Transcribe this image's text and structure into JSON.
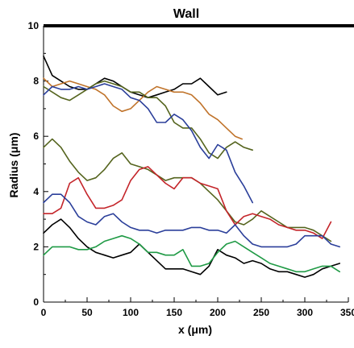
{
  "chart_data": {
    "type": "line",
    "title": "",
    "xlabel": "x (μm)",
    "ylabel": "Radius (μm)",
    "xlim": [
      0,
      350
    ],
    "ylim": [
      0,
      10
    ],
    "x_ticks": [
      "0",
      "50",
      "100",
      "150",
      "200",
      "250",
      "300",
      "350"
    ],
    "y_ticks": [
      "0",
      "2",
      "4",
      "6",
      "8",
      "10"
    ],
    "grid": false,
    "legend": "none",
    "annotations": [
      {
        "text": "Wall",
        "y": 10,
        "color": "#000000"
      }
    ],
    "series": [
      {
        "color": "#000000",
        "x": [
          0,
          10,
          20,
          30,
          40,
          50,
          60,
          70,
          80,
          90,
          100,
          110,
          120,
          130,
          140,
          150,
          160,
          170,
          180,
          190,
          200,
          210
        ],
        "y": [
          8.9,
          8.2,
          8.0,
          7.8,
          7.7,
          7.7,
          7.9,
          8.1,
          8.0,
          7.8,
          7.6,
          7.5,
          7.4,
          7.5,
          7.6,
          7.7,
          7.9,
          7.9,
          8.1,
          7.8,
          7.5,
          7.6
        ]
      },
      {
        "color": "#c0732a",
        "x": [
          0,
          10,
          20,
          30,
          40,
          50,
          60,
          70,
          80,
          90,
          100,
          110,
          120,
          130,
          140,
          150,
          160,
          170,
          180,
          190,
          200,
          210,
          220,
          228
        ],
        "y": [
          8.1,
          7.8,
          7.9,
          8.0,
          7.9,
          7.8,
          7.7,
          7.5,
          7.1,
          6.9,
          7.0,
          7.3,
          7.6,
          7.8,
          7.7,
          7.6,
          7.6,
          7.5,
          7.2,
          6.8,
          6.6,
          6.3,
          6.0,
          5.9
        ]
      },
      {
        "color": "#55641e",
        "x": [
          0,
          10,
          20,
          30,
          40,
          50,
          60,
          70,
          80,
          90,
          100,
          110,
          120,
          130,
          140,
          150,
          160,
          170,
          180,
          190,
          200,
          210,
          220,
          230,
          240
        ],
        "y": [
          7.8,
          7.6,
          7.4,
          7.3,
          7.5,
          7.7,
          7.9,
          8.0,
          7.9,
          7.8,
          7.6,
          7.6,
          7.4,
          7.4,
          7.1,
          6.5,
          6.3,
          6.3,
          5.9,
          5.4,
          5.2,
          5.6,
          5.8,
          5.6,
          5.5
        ]
      },
      {
        "color": "#2b3f9a",
        "x": [
          0,
          10,
          20,
          30,
          40,
          50,
          60,
          70,
          80,
          90,
          100,
          110,
          120,
          130,
          140,
          150,
          160,
          170,
          180,
          190,
          200,
          210,
          220,
          230,
          240
        ],
        "y": [
          7.5,
          7.8,
          7.7,
          7.7,
          7.8,
          7.7,
          7.8,
          7.9,
          7.8,
          7.7,
          7.4,
          7.3,
          7.0,
          6.5,
          6.5,
          6.8,
          6.6,
          6.2,
          5.6,
          5.2,
          5.7,
          5.5,
          4.7,
          4.2,
          3.6
        ]
      },
      {
        "color": "#55641e",
        "x": [
          0,
          10,
          20,
          30,
          40,
          50,
          60,
          70,
          80,
          90,
          100,
          110,
          120,
          130,
          140,
          150,
          160,
          170,
          180,
          190,
          200,
          210,
          220,
          230,
          240,
          250,
          260,
          270,
          280,
          290,
          300,
          310,
          320,
          330
        ],
        "y": [
          5.6,
          5.9,
          5.6,
          5.1,
          4.7,
          4.4,
          4.5,
          4.8,
          5.2,
          5.4,
          5.0,
          4.9,
          4.8,
          4.6,
          4.4,
          4.5,
          4.5,
          4.5,
          4.3,
          4.0,
          3.7,
          3.3,
          2.9,
          2.8,
          3.0,
          3.3,
          3.1,
          2.9,
          2.7,
          2.7,
          2.7,
          2.6,
          2.4,
          2.2
        ]
      },
      {
        "color": "#c4252a",
        "x": [
          0,
          10,
          20,
          30,
          40,
          50,
          60,
          70,
          80,
          90,
          100,
          110,
          120,
          130,
          140,
          150,
          160,
          170,
          180,
          190,
          200,
          210,
          220,
          230,
          240,
          250,
          260,
          270,
          280,
          290,
          300,
          310,
          320,
          330
        ],
        "y": [
          3.2,
          3.2,
          3.4,
          4.3,
          4.5,
          3.9,
          3.4,
          3.4,
          3.5,
          3.7,
          4.4,
          4.8,
          4.9,
          4.6,
          4.3,
          4.1,
          4.5,
          4.5,
          4.3,
          4.2,
          4.1,
          3.3,
          2.8,
          3.1,
          3.2,
          3.1,
          3.0,
          2.8,
          2.7,
          2.6,
          2.6,
          2.5,
          2.3,
          2.9
        ]
      },
      {
        "color": "#2b3f9a",
        "x": [
          0,
          10,
          20,
          30,
          40,
          50,
          60,
          70,
          80,
          90,
          100,
          110,
          120,
          130,
          140,
          150,
          160,
          170,
          180,
          190,
          200,
          210,
          220,
          230,
          240,
          250,
          260,
          270,
          280,
          290,
          300,
          310,
          320,
          330,
          340
        ],
        "y": [
          3.6,
          3.9,
          3.9,
          3.6,
          3.1,
          2.9,
          2.8,
          3.1,
          3.2,
          2.9,
          2.7,
          2.6,
          2.6,
          2.5,
          2.6,
          2.6,
          2.6,
          2.7,
          2.7,
          2.6,
          2.6,
          2.5,
          2.8,
          2.4,
          2.1,
          2.0,
          2.0,
          2.0,
          2.0,
          2.1,
          2.4,
          2.4,
          2.4,
          2.1,
          2.0
        ]
      },
      {
        "color": "#000000",
        "x": [
          0,
          10,
          20,
          30,
          40,
          50,
          60,
          70,
          80,
          90,
          100,
          110,
          120,
          130,
          140,
          150,
          160,
          170,
          180,
          190,
          200,
          210,
          220,
          230,
          240,
          250,
          260,
          270,
          280,
          290,
          300,
          310,
          320,
          330,
          340
        ],
        "y": [
          2.5,
          2.8,
          3.0,
          2.7,
          2.3,
          2.0,
          1.8,
          1.7,
          1.6,
          1.7,
          1.8,
          2.1,
          1.8,
          1.5,
          1.2,
          1.2,
          1.2,
          1.1,
          1.0,
          1.3,
          1.9,
          1.7,
          1.6,
          1.4,
          1.5,
          1.4,
          1.2,
          1.1,
          1.1,
          1.0,
          0.9,
          1.0,
          1.2,
          1.3,
          1.4
        ]
      },
      {
        "color": "#1f9a45",
        "x": [
          0,
          10,
          20,
          30,
          40,
          50,
          60,
          70,
          80,
          90,
          100,
          110,
          120,
          130,
          140,
          150,
          160,
          170,
          180,
          190,
          200,
          210,
          220,
          230,
          240,
          250,
          260,
          270,
          280,
          290,
          300,
          310,
          320,
          330,
          340
        ],
        "y": [
          1.7,
          2.0,
          2.0,
          2.0,
          1.9,
          1.9,
          2.0,
          2.2,
          2.3,
          2.4,
          2.3,
          2.1,
          1.8,
          1.8,
          1.7,
          1.7,
          1.9,
          1.3,
          1.3,
          1.4,
          1.8,
          2.1,
          2.2,
          2.0,
          1.8,
          1.6,
          1.4,
          1.3,
          1.2,
          1.1,
          1.1,
          1.2,
          1.3,
          1.3,
          1.1
        ]
      }
    ]
  }
}
